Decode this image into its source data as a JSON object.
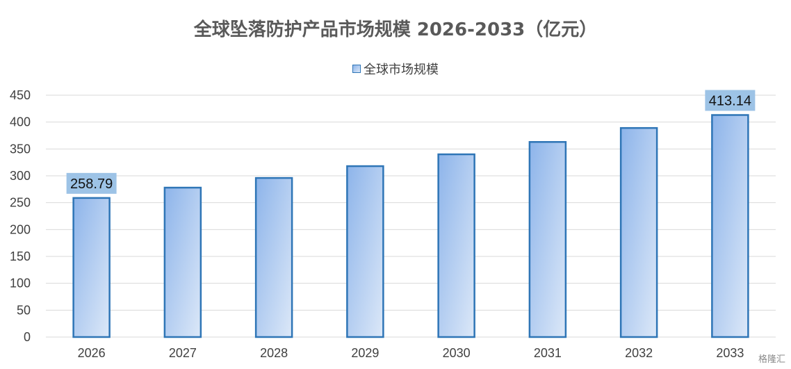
{
  "chart_data": {
    "type": "bar",
    "title": "全球坠落防护产品市场规模 2026-2033（亿元）",
    "legend": "全球市场规模",
    "legend_position": "top-center",
    "categories": [
      "2026",
      "2027",
      "2028",
      "2029",
      "2030",
      "2031",
      "2032",
      "2033"
    ],
    "series": [
      {
        "name": "全球市场规模",
        "values": [
          258.79,
          278,
          296,
          318,
          340,
          363,
          389,
          413.14
        ]
      }
    ],
    "data_labels": [
      {
        "category": "2026",
        "text": "258.79"
      },
      {
        "category": "2033",
        "text": "413.14"
      }
    ],
    "yticks": [
      "0",
      "50",
      "100",
      "150",
      "200",
      "250",
      "300",
      "350",
      "400",
      "450"
    ],
    "ylim": [
      0,
      450
    ],
    "grid": true,
    "colors": {
      "bar_border": "#2E75B6",
      "bar_fill_start": "#8DB4EA",
      "bar_fill_end": "#DCE8F8",
      "label_bg": "#9DC3E6",
      "grid": "#D9D9D9",
      "axis_text": "#404040"
    }
  },
  "watermark": "格隆汇"
}
